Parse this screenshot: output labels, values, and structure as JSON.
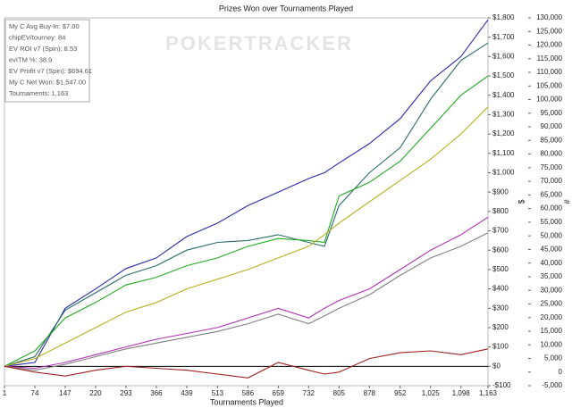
{
  "chart_data": {
    "type": "line",
    "title": "Prizes Won over Tournaments Played",
    "x_label": "Tournaments Played",
    "y_label": "$",
    "y2_label": "#",
    "watermark": "POKERTRACKER",
    "info_lines": [
      "My C Avg Buy-In: $7.00",
      "chipEV/tourney: 84",
      "EV ROI v7 (Spin): 8.53",
      "evITM %: 38.9",
      "EV Profit v7 (Spin): $694.61",
      "My C Net Won: $1,547.00",
      "Tournaments: 1,163"
    ],
    "x": [
      1,
      74,
      147,
      220,
      293,
      366,
      439,
      513,
      586,
      659,
      732,
      770,
      805,
      878,
      952,
      1025,
      1098,
      1163
    ],
    "series": [
      {
        "color": "#2a2aa8",
        "values": [
          0,
          20,
          300,
          400,
          505,
          560,
          670,
          740,
          830,
          900,
          970,
          1000,
          1050,
          1150,
          1280,
          1475,
          1600,
          1790
        ]
      },
      {
        "color": "#2b6a6a",
        "values": [
          0,
          50,
          290,
          380,
          470,
          520,
          600,
          640,
          650,
          680,
          640,
          620,
          830,
          1000,
          1130,
          1380,
          1580,
          1670
        ]
      },
      {
        "color": "#22aa22",
        "values": [
          0,
          80,
          250,
          330,
          420,
          460,
          520,
          560,
          620,
          660,
          650,
          640,
          880,
          950,
          1060,
          1230,
          1400,
          1500
        ]
      },
      {
        "color": "#b8b020",
        "values": [
          0,
          40,
          120,
          200,
          280,
          330,
          400,
          450,
          500,
          560,
          620,
          680,
          740,
          850,
          960,
          1070,
          1200,
          1340
        ]
      },
      {
        "color": "#b030b0",
        "values": [
          0,
          -10,
          20,
          60,
          100,
          140,
          170,
          200,
          250,
          300,
          250,
          300,
          340,
          400,
          500,
          600,
          680,
          770
        ]
      },
      {
        "color": "#808080",
        "values": [
          0,
          -20,
          10,
          50,
          90,
          120,
          150,
          180,
          220,
          270,
          220,
          260,
          300,
          370,
          470,
          560,
          620,
          690
        ]
      },
      {
        "color": "#a02020",
        "values": [
          0,
          -30,
          -50,
          -20,
          0,
          -10,
          -20,
          -40,
          -60,
          20,
          -20,
          -40,
          -30,
          40,
          70,
          80,
          60,
          90
        ]
      }
    ],
    "xlim": [
      1,
      1163
    ],
    "xticks": [
      1,
      74,
      147,
      220,
      293,
      366,
      439,
      513,
      586,
      659,
      732,
      805,
      878,
      952,
      {
        "value": 1025,
        "label": "1,025"
      },
      {
        "value": 1098,
        "label": "1,098"
      },
      {
        "value": 1163,
        "label": "1,163"
      }
    ],
    "ylim": [
      -100,
      1800
    ],
    "yticks": [
      {
        "value": -100,
        "label": "-$100"
      },
      {
        "value": 0,
        "label": "$0"
      },
      {
        "value": 100,
        "label": "$100"
      },
      {
        "value": 200,
        "label": "$200"
      },
      {
        "value": 300,
        "label": "$300"
      },
      {
        "value": 400,
        "label": "$400"
      },
      {
        "value": 500,
        "label": "$500"
      },
      {
        "value": 600,
        "label": "$600"
      },
      {
        "value": 700,
        "label": "$700"
      },
      {
        "value": 800,
        "label": "$800"
      },
      {
        "value": 900,
        "label": "$900"
      },
      {
        "value": 1000,
        "label": "$1,000"
      },
      {
        "value": 1100,
        "label": "$1,100"
      },
      {
        "value": 1200,
        "label": "$1,200"
      },
      {
        "value": 1300,
        "label": "$1,300"
      },
      {
        "value": 1400,
        "label": "$1,400"
      },
      {
        "value": 1500,
        "label": "$1,500"
      },
      {
        "value": 1600,
        "label": "$1,600"
      },
      {
        "value": 1700,
        "label": "$1,700"
      },
      {
        "value": 1800,
        "label": "$1,800"
      }
    ],
    "y2lim": [
      -5000,
      130000
    ],
    "y2ticks": [
      {
        "value": -5000,
        "label": "-5,000"
      },
      0,
      {
        "value": 5000,
        "label": "5,000"
      },
      {
        "value": 10000,
        "label": "10,000"
      },
      {
        "value": 15000,
        "label": "15,000"
      },
      {
        "value": 20000,
        "label": "20,000"
      },
      {
        "value": 25000,
        "label": "25,000"
      },
      {
        "value": 30000,
        "label": "30,000"
      },
      {
        "value": 35000,
        "label": "35,000"
      },
      {
        "value": 40000,
        "label": "40,000"
      },
      {
        "value": 45000,
        "label": "45,000"
      },
      {
        "value": 50000,
        "label": "50,000"
      },
      {
        "value": 55000,
        "label": "55,000"
      },
      {
        "value": 60000,
        "label": "60,000"
      },
      {
        "value": 65000,
        "label": "65,000"
      },
      {
        "value": 70000,
        "label": "70,000"
      },
      {
        "value": 75000,
        "label": "75,000"
      },
      {
        "value": 80000,
        "label": "80,000"
      },
      {
        "value": 85000,
        "label": "85,000"
      },
      {
        "value": 90000,
        "label": "90,000"
      },
      {
        "value": 95000,
        "label": "95,000"
      },
      {
        "value": 100000,
        "label": "100,000"
      },
      {
        "value": 105000,
        "label": "105,000"
      },
      {
        "value": 110000,
        "label": "110,000"
      },
      {
        "value": 115000,
        "label": "115,000"
      },
      {
        "value": 120000,
        "label": "120,000"
      },
      {
        "value": 125000,
        "label": "125,000"
      },
      {
        "value": 130000,
        "label": "130,000"
      }
    ],
    "zero_line": true
  }
}
